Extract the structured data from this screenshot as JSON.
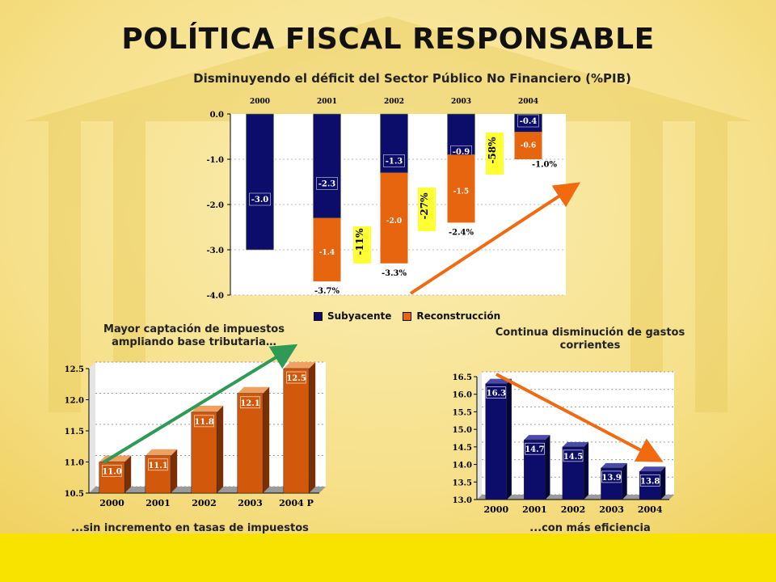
{
  "title": "POLÍTICA FISCAL RESPONSABLE",
  "subtitle": "Disminuyendo el déficit del Sector Público No Financiero (%PIB)",
  "colors": {
    "navy": "#0c0c6a",
    "orange": "#e8650f",
    "yellow_badge": "#ffff33",
    "arrow_orange": "#f26a10",
    "arrow_green": "#2e9a55",
    "footer_yellow": "#f8e300"
  },
  "chart_data": [
    {
      "type": "bar",
      "stacked": true,
      "categories": [
        "2000",
        "2001",
        "2002",
        "2003",
        "2004"
      ],
      "series": [
        {
          "name": "Subyacente",
          "values": [
            -3.0,
            -2.3,
            -1.3,
            -0.9,
            -0.4
          ],
          "labels": [
            "-3.0",
            "-2.3",
            "-1.3",
            "-0.9",
            "-0.4"
          ]
        },
        {
          "name": "Reconstrucción",
          "values": [
            0,
            -1.4,
            -2.0,
            -1.5,
            -0.6
          ],
          "labels": [
            "",
            "-1.4",
            "-2.0",
            "-1.5",
            "-0.6"
          ]
        }
      ],
      "totals": [
        "",
        "-3.7%",
        "-3.3%",
        "-2.4%",
        "-1.0%"
      ],
      "change_badges": [
        "-11%",
        "-27%",
        "-58%"
      ],
      "yticks": [
        "0.0",
        "-1.0",
        "-2.0",
        "-3.0",
        "-4.0"
      ],
      "ylim": [
        -4.0,
        0.0
      ],
      "legend_position": "bottom"
    },
    {
      "type": "bar",
      "categories": [
        "2000",
        "2001",
        "2002",
        "2003",
        "2004 P"
      ],
      "values": [
        11.0,
        11.1,
        11.8,
        12.1,
        12.5
      ],
      "labels": [
        "11.0",
        "11.1",
        "11.8",
        "12.1",
        "12.5"
      ],
      "yticks": [
        "12.5",
        "12.0",
        "11.5",
        "11.0",
        "10.5"
      ],
      "ylim": [
        10.5,
        12.5
      ],
      "title": "Mayor captación de impuestos ampliando base tributaria…",
      "footnote": "...sin incremento en tasas de impuestos"
    },
    {
      "type": "bar",
      "categories": [
        "2000",
        "2001",
        "2002",
        "2003",
        "2004"
      ],
      "values": [
        16.3,
        14.7,
        14.5,
        13.9,
        13.8
      ],
      "labels": [
        "16.3",
        "14.7",
        "14.5",
        "13.9",
        "13.8"
      ],
      "yticks": [
        "16.5",
        "16.0",
        "15.5",
        "15.0",
        "14.5",
        "14.0",
        "13.5",
        "13.0"
      ],
      "ylim": [
        13.0,
        16.5
      ],
      "title": "Continua disminución de gastos corrientes",
      "footnote": "...con más eficiencia"
    }
  ],
  "legend": {
    "subyacente": "Subyacente",
    "reconstruccion": "Reconstrucción"
  },
  "captions": {
    "left_title_1": "Mayor captación de impuestos",
    "left_title_2": "ampliando base tributaria…",
    "left_note": "...sin incremento en tasas de impuestos",
    "right_title_1": "Continua disminución de gastos",
    "right_title_2": "corrientes",
    "right_note": "...con más eficiencia"
  }
}
